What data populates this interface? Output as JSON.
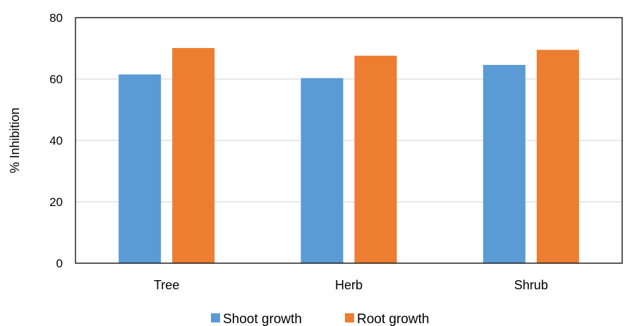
{
  "chart_data": {
    "type": "bar",
    "title": "",
    "xlabel": "",
    "ylabel": "% Inhibition",
    "categories": [
      "Tree",
      "Herb",
      "Shrub"
    ],
    "series": [
      {
        "name": "Shoot growth",
        "values": [
          61.5,
          60.3,
          64.6
        ],
        "color": "#5B9BD5"
      },
      {
        "name": "Root growth",
        "values": [
          70.1,
          67.6,
          69.5
        ],
        "color": "#ED7D31"
      }
    ],
    "ylim": [
      0,
      80
    ],
    "yticks": [
      0,
      20,
      40,
      60,
      80
    ],
    "grid": true,
    "legend": "bottom"
  }
}
